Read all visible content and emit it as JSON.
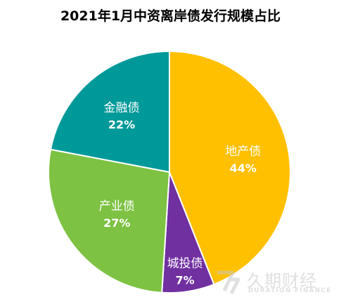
{
  "chart_data": {
    "type": "pie",
    "title": "2021年1月中资离岸债发行规模占比",
    "slices": [
      {
        "name": "地产债",
        "value": 44,
        "label": "44%",
        "color": "#FFC000"
      },
      {
        "name": "城投债",
        "value": 7,
        "label": "7%",
        "color": "#7030A0"
      },
      {
        "name": "产业债",
        "value": 27,
        "label": "27%",
        "color": "#7DC242"
      },
      {
        "name": "金融债",
        "value": 22,
        "label": "22%",
        "color": "#009999"
      }
    ]
  },
  "watermark": {
    "brand_cn": "久期财经",
    "brand_en": "DURATION FINANCE"
  }
}
